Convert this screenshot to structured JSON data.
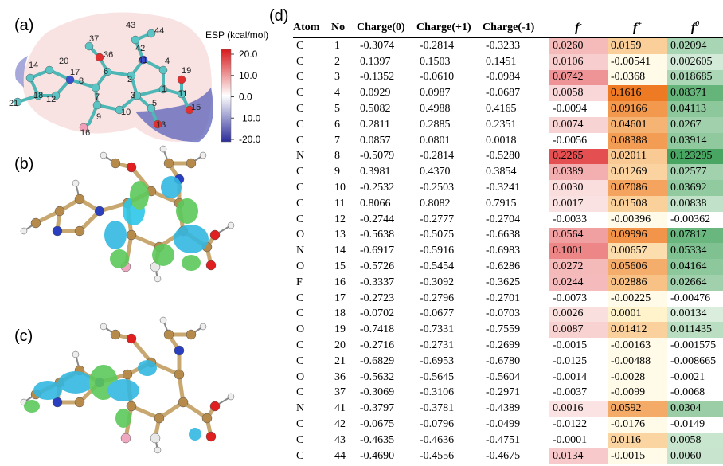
{
  "panel_labels": [
    "(a)",
    "(b)",
    "(c)",
    "(d)"
  ],
  "esp_map": {
    "title": "ESP (kcal/mol)",
    "colorbar_ticks": [
      "20.0",
      "10.0",
      "0.0",
      "-10.0",
      "-20.0"
    ],
    "atom_labels": [
      "37",
      "43",
      "44",
      "36",
      "41",
      "42",
      "14",
      "20",
      "17",
      "8",
      "6",
      "2",
      "4",
      "19",
      "1",
      "11",
      "21",
      "18",
      "12",
      "7",
      "3",
      "5",
      "15",
      "9",
      "10",
      "13",
      "16"
    ]
  },
  "table": {
    "header": [
      "Atom",
      "No",
      "Charge(0)",
      "Charge(+1)",
      "Charge(-1)",
      {
        "text": "f",
        "sup": "-"
      },
      {
        "text": "f",
        "sup": "+"
      },
      {
        "text": "f",
        "sup": "0"
      }
    ],
    "rows": [
      [
        "C",
        "1",
        "-0.3074",
        "-0.2814",
        "-0.3233",
        "0.0260",
        "0.0159",
        "0.02094"
      ],
      [
        "C",
        "2",
        "0.1397",
        "0.1503",
        "0.1451",
        "0.0106",
        "-0.00541",
        "0.002605"
      ],
      [
        "C",
        "3",
        "-0.1352",
        "-0.0610",
        "-0.0984",
        "0.0742",
        "-0.0368",
        "0.018685"
      ],
      [
        "C",
        "4",
        "0.0929",
        "0.0987",
        "-0.0687",
        "0.0058",
        "0.1616",
        "0.08371"
      ],
      [
        "C",
        "5",
        "0.5082",
        "0.4988",
        "0.4165",
        "-0.0094",
        "0.09166",
        "0.04113"
      ],
      [
        "C",
        "6",
        "0.2811",
        "0.2885",
        "0.2351",
        "0.0074",
        "0.04601",
        "0.0267"
      ],
      [
        "C",
        "7",
        "0.0857",
        "0.0801",
        "0.0018",
        "-0.0056",
        "0.08388",
        "0.03914"
      ],
      [
        "N",
        "8",
        "-0.5079",
        "-0.2814",
        "-0.5280",
        "0.2265",
        "0.02011",
        "0.123295"
      ],
      [
        "C",
        "9",
        "0.3981",
        "0.4370",
        "0.3854",
        "0.0389",
        "0.01269",
        "0.02577"
      ],
      [
        "C",
        "10",
        "-0.2532",
        "-0.2503",
        "-0.3241",
        "0.0030",
        "0.07086",
        "0.03692"
      ],
      [
        "C",
        "11",
        "0.8066",
        "0.8082",
        "0.7915",
        "0.0017",
        "0.01508",
        "0.00838"
      ],
      [
        "C",
        "12",
        "-0.2744",
        "-0.2777",
        "-0.2704",
        "-0.0033",
        "-0.00396",
        "-0.00362"
      ],
      [
        "O",
        "13",
        "-0.5638",
        "-0.5075",
        "-0.6638",
        "0.0564",
        "0.09996",
        "0.07817"
      ],
      [
        "N",
        "14",
        "-0.6917",
        "-0.5916",
        "-0.6983",
        "0.1001",
        "0.00657",
        "0.05334"
      ],
      [
        "O",
        "15",
        "-0.5726",
        "-0.5454",
        "-0.6286",
        "0.0272",
        "0.05606",
        "0.04164"
      ],
      [
        "F",
        "16",
        "-0.3337",
        "-0.3092",
        "-0.3625",
        "0.0244",
        "0.02886",
        "0.02664"
      ],
      [
        "C",
        "17",
        "-0.2723",
        "-0.2796",
        "-0.2701",
        "-0.0073",
        "-0.00225",
        "-0.00476"
      ],
      [
        "C",
        "18",
        "-0.0702",
        "-0.0677",
        "-0.0703",
        "0.0026",
        "0.0001",
        "0.00134"
      ],
      [
        "O",
        "19",
        "-0.7418",
        "-0.7331",
        "-0.7559",
        "0.0087",
        "0.01412",
        "0.011435"
      ],
      [
        "C",
        "20",
        "-0.2716",
        "-0.2731",
        "-0.2699",
        "-0.0015",
        "-0.00163",
        "-0.001575"
      ],
      [
        "C",
        "21",
        "-0.6829",
        "-0.6953",
        "-0.6780",
        "-0.0125",
        "-0.00488",
        "-0.008665"
      ],
      [
        "O",
        "36",
        "-0.5632",
        "-0.5645",
        "-0.5604",
        "-0.0014",
        "-0.0028",
        "-0.0021"
      ],
      [
        "C",
        "37",
        "-0.3069",
        "-0.3106",
        "-0.2971",
        "-0.0037",
        "-0.0099",
        "-0.0068"
      ],
      [
        "N",
        "41",
        "-0.3797",
        "-0.3781",
        "-0.4389",
        "0.0016",
        "0.0592",
        "0.0304"
      ],
      [
        "C",
        "42",
        "-0.0675",
        "-0.0796",
        "-0.0499",
        "-0.0122",
        "-0.0176",
        "-0.0149"
      ],
      [
        "C",
        "43",
        "-0.4635",
        "-0.4636",
        "-0.4751",
        "-0.0001",
        "0.0116",
        "0.0058"
      ],
      [
        "C",
        "44",
        "-0.4690",
        "-0.4556",
        "-0.4675",
        "0.0134",
        "-0.0015",
        "0.0060"
      ]
    ]
  }
}
